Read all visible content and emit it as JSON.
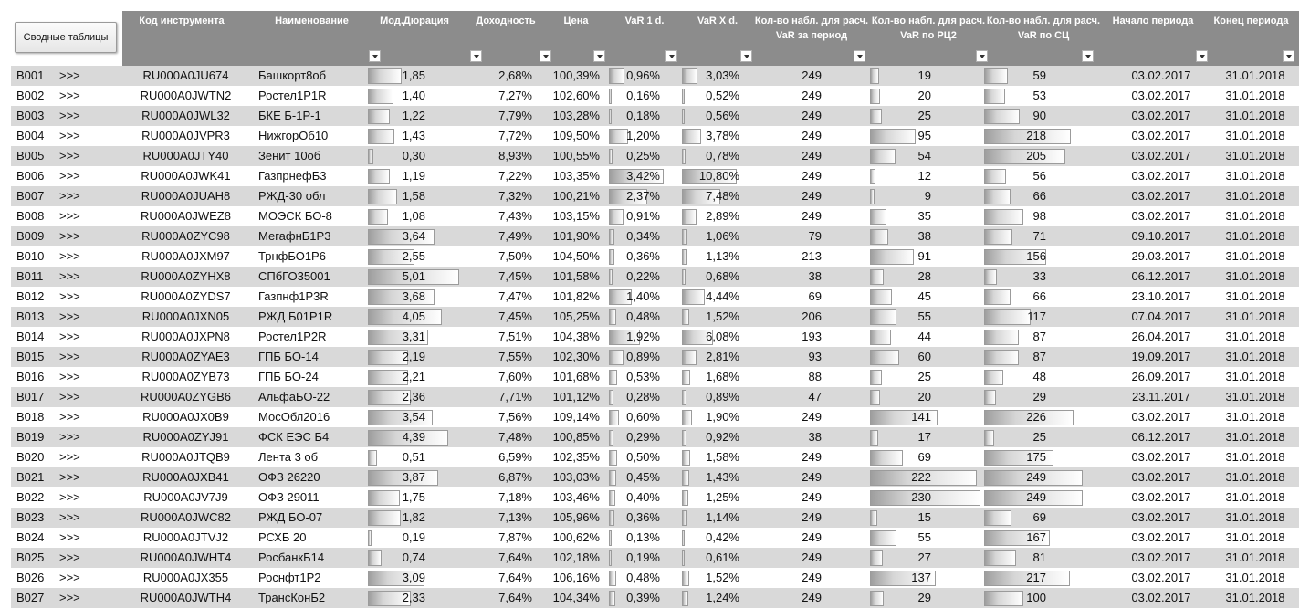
{
  "pivot_button": "Сводные таблицы",
  "link_text": ">>>",
  "headers": {
    "code": "Код инструмента",
    "name": "Наименование",
    "duration": "Мод.Дюрация",
    "yield": "Доходность",
    "price": "Цена",
    "var1": "VaR 1 d.",
    "varx": "VaR X d.",
    "n_period": "Кол-во набл. для расч. VaR за период",
    "n_rc2": "Кол-во набл. для расч. VaR по РЦ2",
    "n_sc": "Кол-во набл. для расч. VaR по СЦ",
    "start": "Начало периода",
    "end": "Конец периода"
  },
  "colors": {
    "header_bg": "#8c8c8c",
    "row_shade": "#d9d9d9"
  },
  "icons": {
    "filter": "filter-dropdown-icon"
  },
  "rows": [
    {
      "id": "B001",
      "code": "RU000A0JU674",
      "name": "Башкорт8об",
      "dur": "1,85",
      "yld": "2,68%",
      "price": "100,39%",
      "var1": "0,96%",
      "varx": "3,03%",
      "nper": "249",
      "nrc2": "19",
      "nsc": "59",
      "start": "03.02.2017",
      "end": "31.01.2018"
    },
    {
      "id": "B002",
      "code": "RU000A0JWTN2",
      "name": "Ростел1Р1R",
      "dur": "1,40",
      "yld": "7,27%",
      "price": "102,60%",
      "var1": "0,16%",
      "varx": "0,52%",
      "nper": "249",
      "nrc2": "20",
      "nsc": "53",
      "start": "03.02.2017",
      "end": "31.01.2018"
    },
    {
      "id": "B003",
      "code": "RU000A0JWL32",
      "name": "БКЕ Б-1Р-1",
      "dur": "1,22",
      "yld": "7,79%",
      "price": "103,28%",
      "var1": "0,18%",
      "varx": "0,56%",
      "nper": "249",
      "nrc2": "25",
      "nsc": "90",
      "start": "03.02.2017",
      "end": "31.01.2018"
    },
    {
      "id": "B004",
      "code": "RU000A0JVPR3",
      "name": "НижгорОб10",
      "dur": "1,43",
      "yld": "7,72%",
      "price": "109,50%",
      "var1": "1,20%",
      "varx": "3,78%",
      "nper": "249",
      "nrc2": "95",
      "nsc": "218",
      "start": "03.02.2017",
      "end": "31.01.2018"
    },
    {
      "id": "B005",
      "code": "RU000A0JTY40",
      "name": "Зенит 10об",
      "dur": "0,30",
      "yld": "8,93%",
      "price": "100,55%",
      "var1": "0,25%",
      "varx": "0,78%",
      "nper": "249",
      "nrc2": "54",
      "nsc": "205",
      "start": "03.02.2017",
      "end": "31.01.2018"
    },
    {
      "id": "B006",
      "code": "RU000A0JWK41",
      "name": "ГазпрнефБ3",
      "dur": "1,19",
      "yld": "7,22%",
      "price": "103,35%",
      "var1": "3,42%",
      "varx": "10,80%",
      "nper": "249",
      "nrc2": "12",
      "nsc": "56",
      "start": "03.02.2017",
      "end": "31.01.2018"
    },
    {
      "id": "B007",
      "code": "RU000A0JUAH8",
      "name": "РЖД-30 обл",
      "dur": "1,58",
      "yld": "7,32%",
      "price": "100,21%",
      "var1": "2,37%",
      "varx": "7,48%",
      "nper": "249",
      "nrc2": "9",
      "nsc": "66",
      "start": "03.02.2017",
      "end": "31.01.2018"
    },
    {
      "id": "B008",
      "code": "RU000A0JWEZ8",
      "name": "МОЭСК БО-8",
      "dur": "1,08",
      "yld": "7,43%",
      "price": "103,15%",
      "var1": "0,91%",
      "varx": "2,89%",
      "nper": "249",
      "nrc2": "35",
      "nsc": "98",
      "start": "03.02.2017",
      "end": "31.01.2018"
    },
    {
      "id": "B009",
      "code": "RU000A0ZYC98",
      "name": "МегафнБ1Р3",
      "dur": "3,64",
      "yld": "7,49%",
      "price": "101,90%",
      "var1": "0,34%",
      "varx": "1,06%",
      "nper": "79",
      "nrc2": "38",
      "nsc": "71",
      "start": "09.10.2017",
      "end": "31.01.2018"
    },
    {
      "id": "B010",
      "code": "RU000A0JXM97",
      "name": "ТрнфБО1Р6",
      "dur": "2,55",
      "yld": "7,50%",
      "price": "104,50%",
      "var1": "0,36%",
      "varx": "1,13%",
      "nper": "213",
      "nrc2": "91",
      "nsc": "156",
      "start": "29.03.2017",
      "end": "31.01.2018"
    },
    {
      "id": "B011",
      "code": "RU000A0ZYHX8",
      "name": "СПбГО35001",
      "dur": "5,01",
      "yld": "7,45%",
      "price": "101,58%",
      "var1": "0,22%",
      "varx": "0,68%",
      "nper": "38",
      "nrc2": "28",
      "nsc": "33",
      "start": "06.12.2017",
      "end": "31.01.2018"
    },
    {
      "id": "B012",
      "code": "RU000A0ZYDS7",
      "name": "Газпнф1Р3R",
      "dur": "3,68",
      "yld": "7,47%",
      "price": "101,82%",
      "var1": "1,40%",
      "varx": "4,44%",
      "nper": "69",
      "nrc2": "45",
      "nsc": "66",
      "start": "23.10.2017",
      "end": "31.01.2018"
    },
    {
      "id": "B013",
      "code": "RU000A0JXN05",
      "name": "РЖД Б01Р1R",
      "dur": "4,05",
      "yld": "7,45%",
      "price": "105,25%",
      "var1": "0,48%",
      "varx": "1,52%",
      "nper": "206",
      "nrc2": "55",
      "nsc": "117",
      "start": "07.04.2017",
      "end": "31.01.2018"
    },
    {
      "id": "B014",
      "code": "RU000A0JXPN8",
      "name": "Ростел1Р2R",
      "dur": "3,31",
      "yld": "7,51%",
      "price": "104,38%",
      "var1": "1,92%",
      "varx": "6,08%",
      "nper": "193",
      "nrc2": "44",
      "nsc": "87",
      "start": "26.04.2017",
      "end": "31.01.2018"
    },
    {
      "id": "B015",
      "code": "RU000A0ZYAE3",
      "name": "ГПБ БО-14",
      "dur": "2,19",
      "yld": "7,55%",
      "price": "102,30%",
      "var1": "0,89%",
      "varx": "2,81%",
      "nper": "93",
      "nrc2": "60",
      "nsc": "87",
      "start": "19.09.2017",
      "end": "31.01.2018"
    },
    {
      "id": "B016",
      "code": "RU000A0ZYB73",
      "name": "ГПБ БО-24",
      "dur": "2,21",
      "yld": "7,60%",
      "price": "101,68%",
      "var1": "0,53%",
      "varx": "1,68%",
      "nper": "88",
      "nrc2": "25",
      "nsc": "48",
      "start": "26.09.2017",
      "end": "31.01.2018"
    },
    {
      "id": "B017",
      "code": "RU000A0ZYGB6",
      "name": "АльфаБО-22",
      "dur": "2,36",
      "yld": "7,71%",
      "price": "101,12%",
      "var1": "0,28%",
      "varx": "0,89%",
      "nper": "47",
      "nrc2": "20",
      "nsc": "29",
      "start": "23.11.2017",
      "end": "31.01.2018"
    },
    {
      "id": "B018",
      "code": "RU000A0JX0B9",
      "name": "МосОбл2016",
      "dur": "3,54",
      "yld": "7,56%",
      "price": "109,14%",
      "var1": "0,60%",
      "varx": "1,90%",
      "nper": "249",
      "nrc2": "141",
      "nsc": "226",
      "start": "03.02.2017",
      "end": "31.01.2018"
    },
    {
      "id": "B019",
      "code": "RU000A0ZYJ91",
      "name": "ФСК ЕЭС Б4",
      "dur": "4,39",
      "yld": "7,48%",
      "price": "100,85%",
      "var1": "0,29%",
      "varx": "0,92%",
      "nper": "38",
      "nrc2": "17",
      "nsc": "25",
      "start": "06.12.2017",
      "end": "31.01.2018"
    },
    {
      "id": "B020",
      "code": "RU000A0JTQB9",
      "name": "Лента 3 об",
      "dur": "0,51",
      "yld": "6,59%",
      "price": "102,35%",
      "var1": "0,50%",
      "varx": "1,58%",
      "nper": "249",
      "nrc2": "69",
      "nsc": "175",
      "start": "03.02.2017",
      "end": "31.01.2018"
    },
    {
      "id": "B021",
      "code": "RU000A0JXB41",
      "name": "ОФЗ 26220",
      "dur": "3,87",
      "yld": "6,87%",
      "price": "103,03%",
      "var1": "0,45%",
      "varx": "1,43%",
      "nper": "249",
      "nrc2": "222",
      "nsc": "249",
      "start": "03.02.2017",
      "end": "31.01.2018"
    },
    {
      "id": "B022",
      "code": "RU000A0JV7J9",
      "name": "ОФЗ 29011",
      "dur": "1,75",
      "yld": "7,18%",
      "price": "103,46%",
      "var1": "0,40%",
      "varx": "1,25%",
      "nper": "249",
      "nrc2": "230",
      "nsc": "249",
      "start": "03.02.2017",
      "end": "31.01.2018"
    },
    {
      "id": "B023",
      "code": "RU000A0JWC82",
      "name": "РЖД БО-07",
      "dur": "1,82",
      "yld": "7,13%",
      "price": "105,96%",
      "var1": "0,36%",
      "varx": "1,14%",
      "nper": "249",
      "nrc2": "15",
      "nsc": "69",
      "start": "03.02.2017",
      "end": "31.01.2018"
    },
    {
      "id": "B024",
      "code": "RU000A0JTVJ2",
      "name": "РСХБ 20",
      "dur": "0,19",
      "yld": "7,87%",
      "price": "100,62%",
      "var1": "0,13%",
      "varx": "0,42%",
      "nper": "249",
      "nrc2": "55",
      "nsc": "167",
      "start": "03.02.2017",
      "end": "31.01.2018"
    },
    {
      "id": "B025",
      "code": "RU000A0JWHT4",
      "name": "РосбанкБ14",
      "dur": "0,74",
      "yld": "7,64%",
      "price": "102,18%",
      "var1": "0,19%",
      "varx": "0,61%",
      "nper": "249",
      "nrc2": "27",
      "nsc": "81",
      "start": "03.02.2017",
      "end": "31.01.2018"
    },
    {
      "id": "B026",
      "code": "RU000A0JX355",
      "name": "Роснфт1Р2",
      "dur": "3,09",
      "yld": "7,64%",
      "price": "106,16%",
      "var1": "0,48%",
      "varx": "1,52%",
      "nper": "249",
      "nrc2": "137",
      "nsc": "217",
      "start": "03.02.2017",
      "end": "31.01.2018"
    },
    {
      "id": "B027",
      "code": "RU000A0JWTH4",
      "name": "ТрансКонБ2",
      "dur": "2,33",
      "yld": "7,64%",
      "price": "104,34%",
      "var1": "0,39%",
      "varx": "1,24%",
      "nper": "249",
      "nrc2": "29",
      "nsc": "100",
      "start": "03.02.2017",
      "end": "31.01.2018"
    }
  ]
}
